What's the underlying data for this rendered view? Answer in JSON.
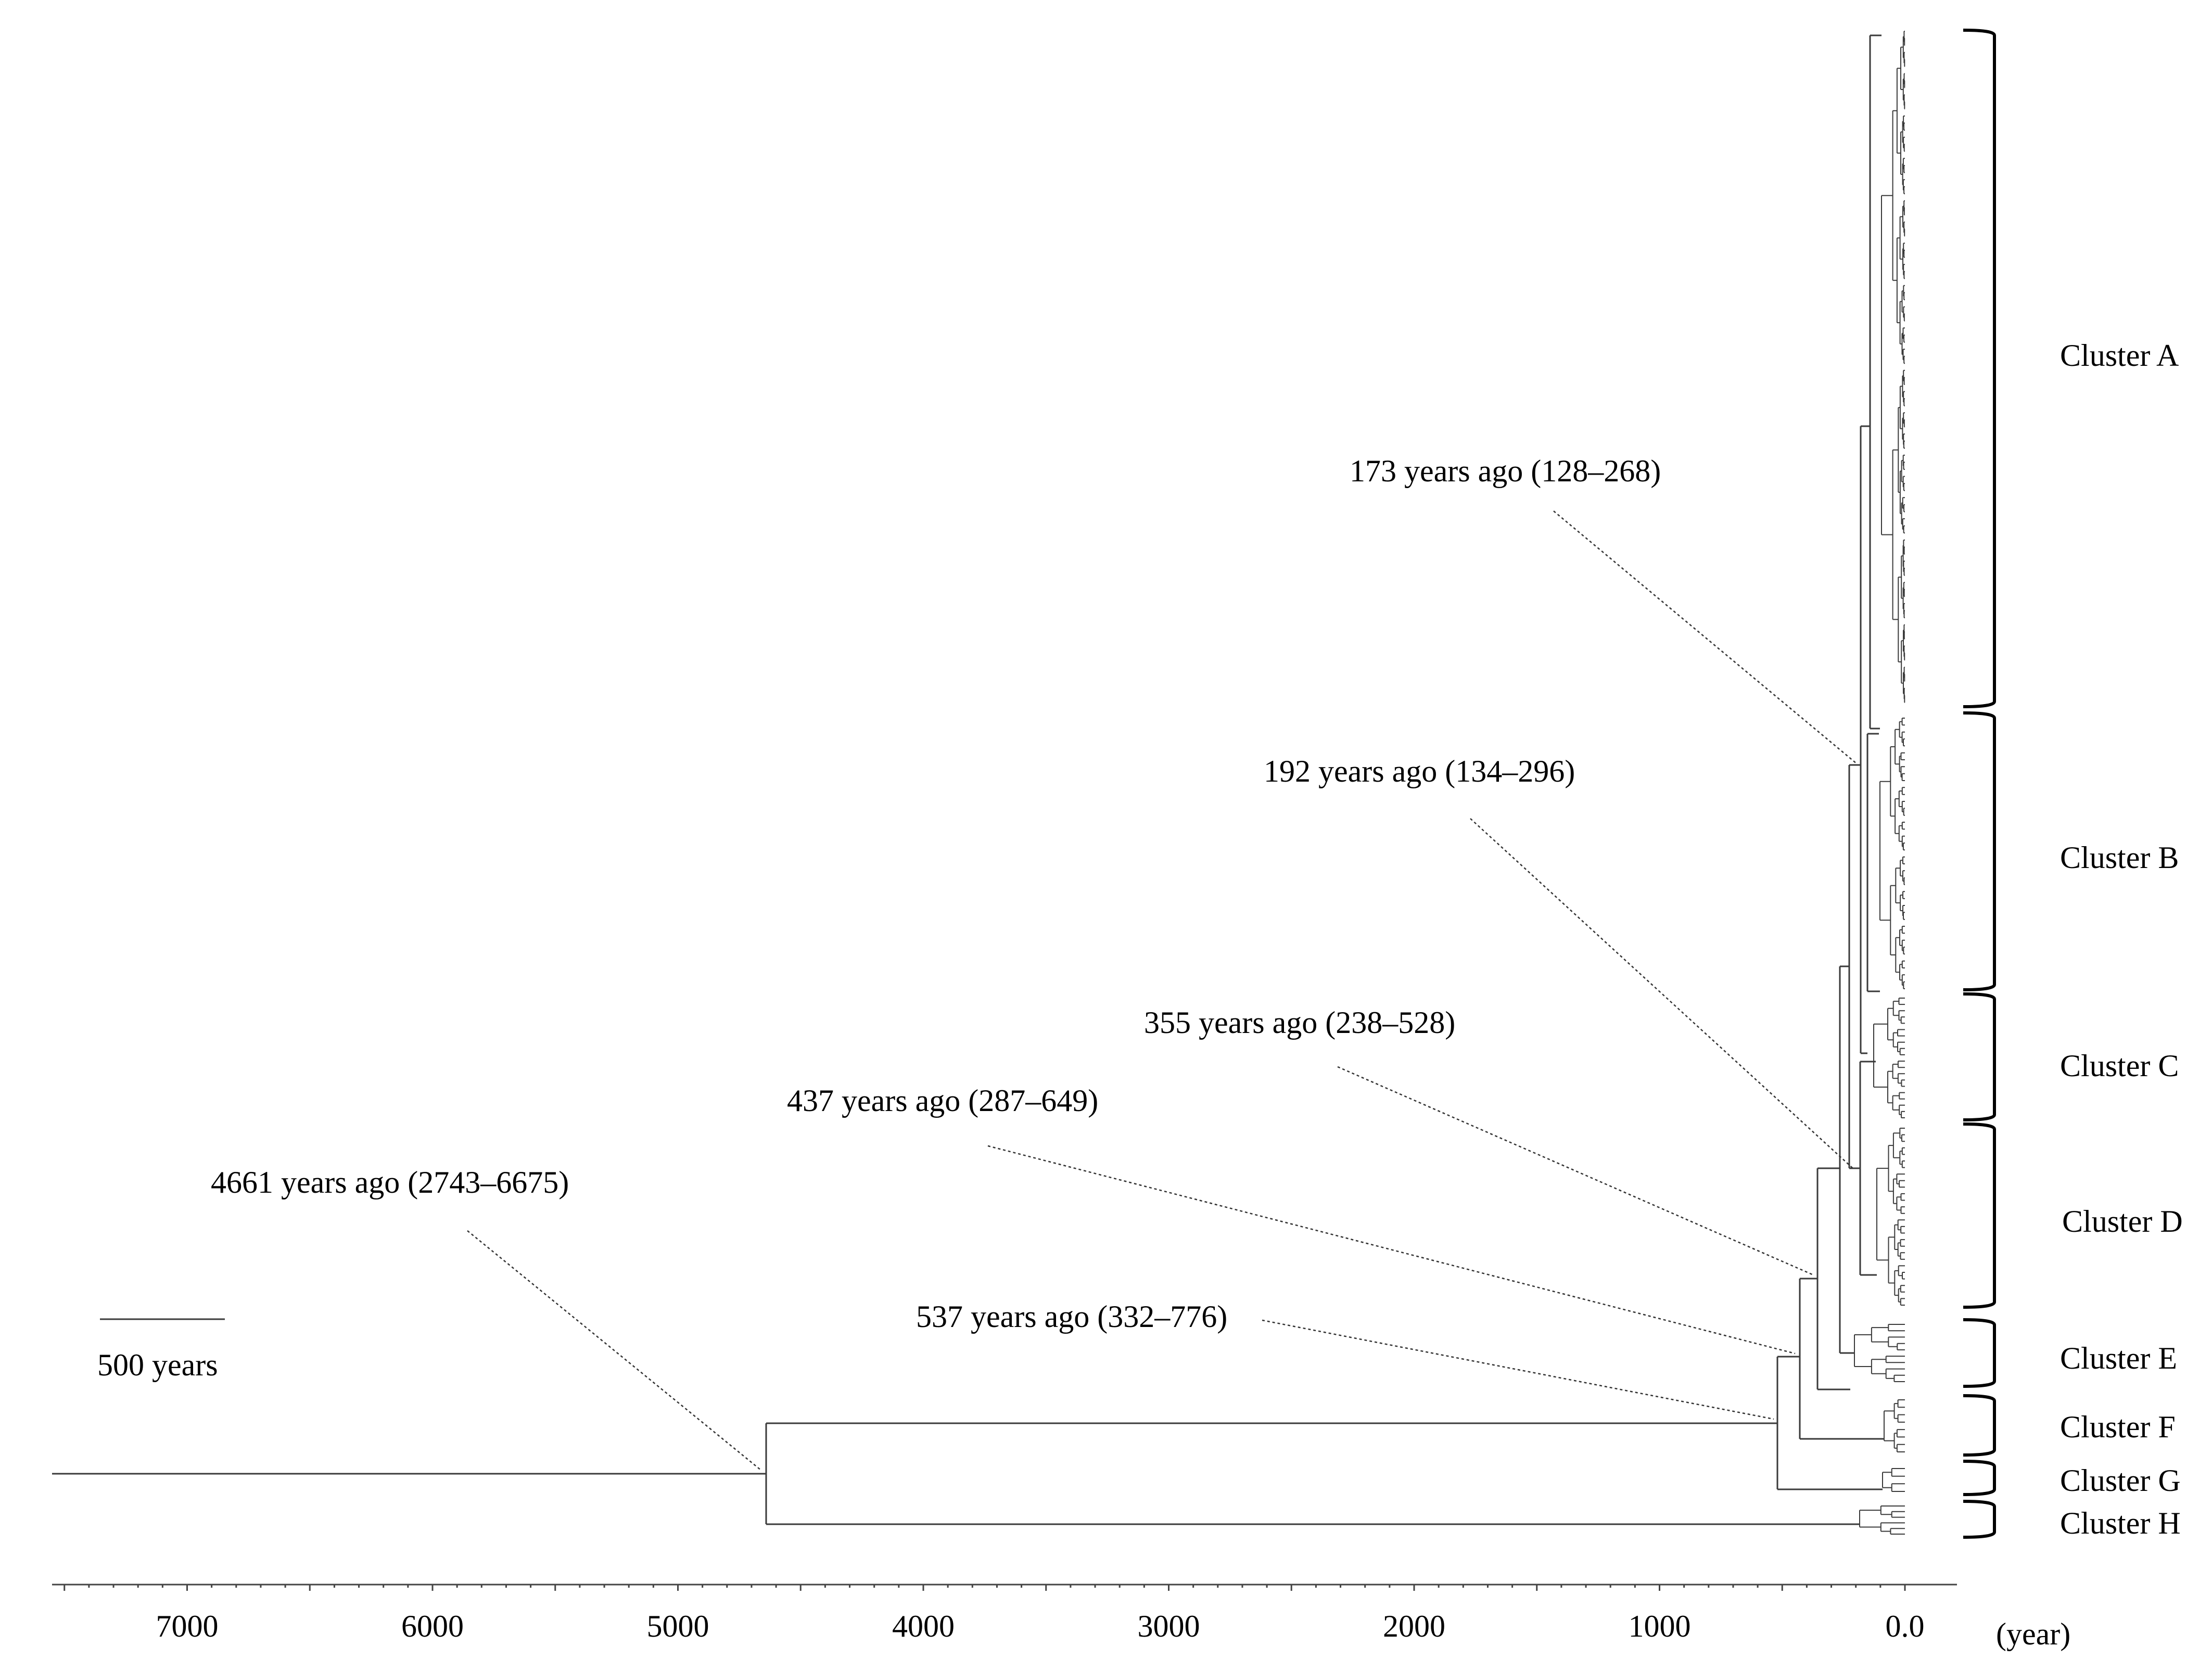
{
  "figure": {
    "type": "time-calibrated phylogenetic tree",
    "axis": {
      "unit_label": "(year)",
      "ticks": [
        {
          "value": 7000,
          "label": "7000"
        },
        {
          "value": 6000,
          "label": "6000"
        },
        {
          "value": 5000,
          "label": "5000"
        },
        {
          "value": 4000,
          "label": "4000"
        },
        {
          "value": 3000,
          "label": "3000"
        },
        {
          "value": 2000,
          "label": "2000"
        },
        {
          "value": 1000,
          "label": "1000"
        },
        {
          "value": 0,
          "label": "0.0"
        }
      ],
      "range_years": [
        7600,
        -200
      ]
    },
    "scale_bar": {
      "label": "500 years",
      "length_years": 500
    },
    "nodes": [
      {
        "id": "root",
        "age": 4661,
        "label": "4661 years ago (2743–6675)"
      },
      {
        "id": "n537",
        "age": 537,
        "label": "537 years ago (332–776)"
      },
      {
        "id": "n437",
        "age": 437,
        "label": "437 years ago (287–649)"
      },
      {
        "id": "n355",
        "age": 355,
        "label": "355 years ago (238–528)"
      },
      {
        "id": "n192",
        "age": 192,
        "label": "192 years ago (134–296)"
      },
      {
        "id": "n173",
        "age": 173,
        "label": "173 years ago (128–268)"
      }
    ],
    "clusters": [
      {
        "id": "A",
        "label": "Cluster A"
      },
      {
        "id": "B",
        "label": "Cluster B"
      },
      {
        "id": "C",
        "label": "Cluster C"
      },
      {
        "id": "D",
        "label": "Cluster D"
      },
      {
        "id": "E",
        "label": "Cluster E"
      },
      {
        "id": "F",
        "label": "Cluster F"
      },
      {
        "id": "G",
        "label": "Cluster G"
      },
      {
        "id": "H",
        "label": "Cluster H"
      }
    ]
  }
}
